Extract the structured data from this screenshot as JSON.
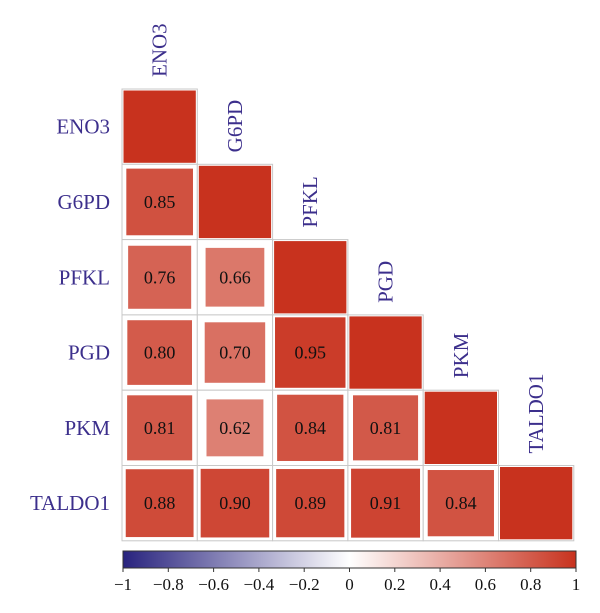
{
  "chart_data": {
    "type": "heatmap",
    "variables": [
      "ENO3",
      "G6PD",
      "PFKL",
      "PGD",
      "PKM",
      "TALDO1"
    ],
    "matrix": [
      [
        1.0,
        0.85,
        0.76,
        0.8,
        0.81,
        0.88
      ],
      [
        0.85,
        1.0,
        0.66,
        0.7,
        0.62,
        0.9
      ],
      [
        0.76,
        0.66,
        1.0,
        0.95,
        0.84,
        0.89
      ],
      [
        0.8,
        0.7,
        0.95,
        1.0,
        0.81,
        0.91
      ],
      [
        0.81,
        0.62,
        0.84,
        0.81,
        1.0,
        0.84
      ],
      [
        0.88,
        0.9,
        0.89,
        0.91,
        0.84,
        1.0
      ]
    ],
    "display": "lower-triangle-with-diagonal",
    "value_labels": [
      [
        null,
        null,
        null,
        null,
        null,
        null
      ],
      [
        "0.85",
        null,
        null,
        null,
        null,
        null
      ],
      [
        "0.76",
        "0.66",
        null,
        null,
        null,
        null
      ],
      [
        "0.80",
        "0.70",
        "0.95",
        null,
        null,
        null
      ],
      [
        "0.81",
        "0.62",
        "0.84",
        "0.81",
        null,
        null
      ],
      [
        "0.88",
        "0.90",
        "0.89",
        "0.91",
        "0.84",
        null
      ]
    ],
    "color_scale": {
      "min": -1,
      "max": 1,
      "colors": [
        "#28237e",
        "#ffffff",
        "#c8321e"
      ],
      "ticks": [
        "−1",
        "−0.8",
        "−0.6",
        "−0.4",
        "−0.2",
        "0",
        "0.2",
        "0.4",
        "0.6",
        "0.8",
        "1"
      ]
    },
    "title": "",
    "xlabel": "",
    "ylabel": ""
  }
}
